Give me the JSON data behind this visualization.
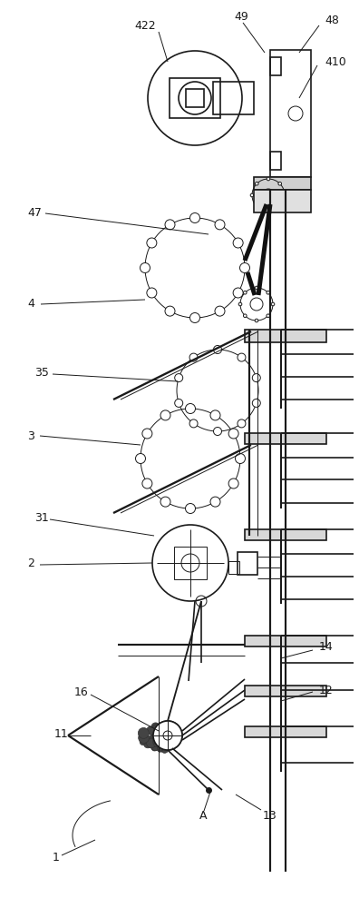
{
  "fig_width": 3.96,
  "fig_height": 10.0,
  "dpi": 100,
  "bg_color": "#ffffff",
  "line_color": "#1a1a1a",
  "lw": 1.2,
  "tlw": 0.7
}
